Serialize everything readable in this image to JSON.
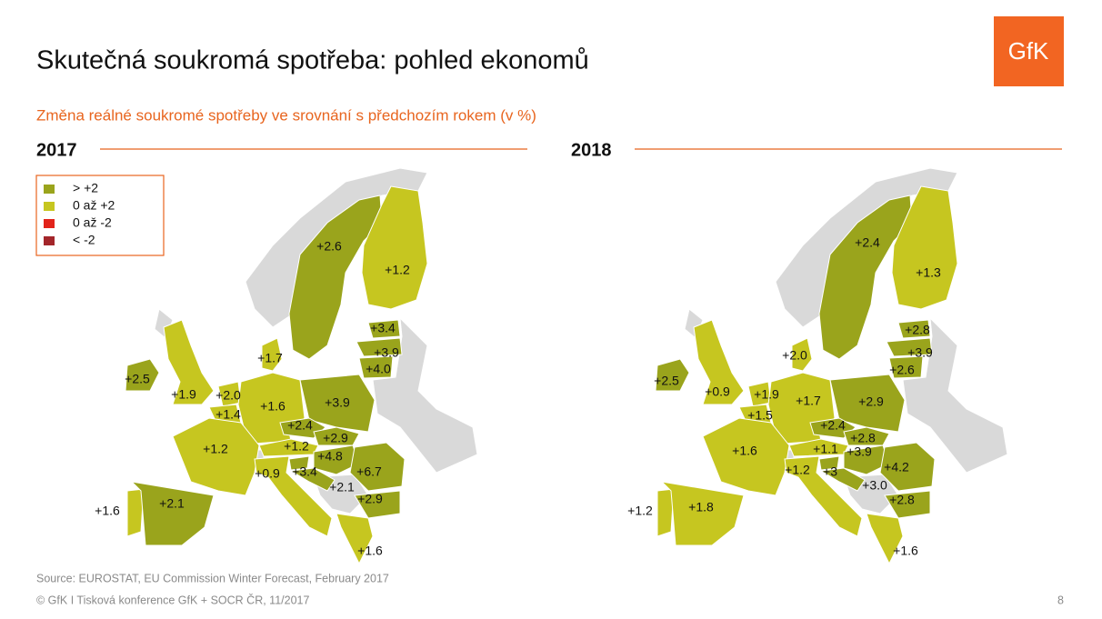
{
  "header": {
    "title": "Skutečná soukromá spotřeba: pohled ekonomů",
    "subtitle": "Změna reálné soukromé spotřeby ve srovnání s předchozím rokem (v %)",
    "logo": "GfK"
  },
  "legend": [
    {
      "label": "> +2",
      "color": "#9aa41c"
    },
    {
      "label": "0 až +2",
      "color": "#c6c620"
    },
    {
      "label": "0 až -2",
      "color": "#e2231a"
    },
    {
      "label": "< -2",
      "color": "#a3262a"
    }
  ],
  "maps": [
    {
      "year": "2017",
      "labels": [
        {
          "text": "+2.6",
          "color": "#9aa41c"
        },
        {
          "text": "+1.2",
          "color": "#c6c620"
        },
        {
          "text": "+3.4",
          "color": "#9aa41c"
        },
        {
          "text": "+3.9",
          "color": "#9aa41c"
        },
        {
          "text": "+4.0",
          "color": "#9aa41c"
        },
        {
          "text": "+1.7",
          "color": "#c6c620"
        },
        {
          "text": "+2.5",
          "color": "#9aa41c"
        },
        {
          "text": "+1.9",
          "color": "#c6c620"
        },
        {
          "text": "+2.0",
          "color": "#c6c620"
        },
        {
          "text": "+1.4",
          "color": "#c6c620"
        },
        {
          "text": "+1.6",
          "color": "#c6c620"
        },
        {
          "text": "+3.9",
          "color": "#9aa41c"
        },
        {
          "text": "+2.4",
          "color": "#9aa41c"
        },
        {
          "text": "+2.9",
          "color": "#9aa41c"
        },
        {
          "text": "+1.2",
          "color": "#c6c620"
        },
        {
          "text": "+4.8",
          "color": "#9aa41c"
        },
        {
          "text": "+1.2",
          "color": "#c6c620"
        },
        {
          "text": "+6.7",
          "color": "#9aa41c"
        },
        {
          "text": "+0.9",
          "color": "#c6c620"
        },
        {
          "text": "+3.4",
          "color": "#9aa41c"
        },
        {
          "text": "+2.1",
          "color": "#9aa41c"
        },
        {
          "text": "+2.9",
          "color": "#9aa41c"
        },
        {
          "text": "+1.6",
          "color": "#c6c620"
        },
        {
          "text": "+2.1",
          "color": "#9aa41c"
        },
        {
          "text": "+1.6",
          "color": "#c6c620"
        }
      ]
    },
    {
      "year": "2018",
      "labels": [
        {
          "text": "+2.4",
          "color": "#9aa41c"
        },
        {
          "text": "+1.3",
          "color": "#c6c620"
        },
        {
          "text": "+2.8",
          "color": "#9aa41c"
        },
        {
          "text": "+3.9",
          "color": "#9aa41c"
        },
        {
          "text": "+2.6",
          "color": "#9aa41c"
        },
        {
          "text": "+2.0",
          "color": "#c6c620"
        },
        {
          "text": "+2.5",
          "color": "#9aa41c"
        },
        {
          "text": "+0.9",
          "color": "#c6c620"
        },
        {
          "text": "+1.9",
          "color": "#c6c620"
        },
        {
          "text": "+1.5",
          "color": "#c6c620"
        },
        {
          "text": "+1.7",
          "color": "#c6c620"
        },
        {
          "text": "+2.9",
          "color": "#9aa41c"
        },
        {
          "text": "+2.4",
          "color": "#9aa41c"
        },
        {
          "text": "+2.8",
          "color": "#9aa41c"
        },
        {
          "text": "+1.1",
          "color": "#c6c620"
        },
        {
          "text": "+3.9",
          "color": "#9aa41c"
        },
        {
          "text": "+1.6",
          "color": "#c6c620"
        },
        {
          "text": "+4.2",
          "color": "#9aa41c"
        },
        {
          "text": "+1.2",
          "color": "#c6c620"
        },
        {
          "text": "+3",
          "color": "#9aa41c"
        },
        {
          "text": "+3.0",
          "color": "#9aa41c"
        },
        {
          "text": "+2.8",
          "color": "#9aa41c"
        },
        {
          "text": "+1.2",
          "color": "#c6c620"
        },
        {
          "text": "+1.8",
          "color": "#c6c620"
        },
        {
          "text": "+1.6",
          "color": "#c6c620"
        }
      ]
    }
  ],
  "footer": {
    "source": "Source: EUROSTAT, EU Commission Winter Forecast, February 2017",
    "copyright": "© GfK  I  Tisková konference GfK + SOCR ČR, 11/2017",
    "page": 8
  }
}
